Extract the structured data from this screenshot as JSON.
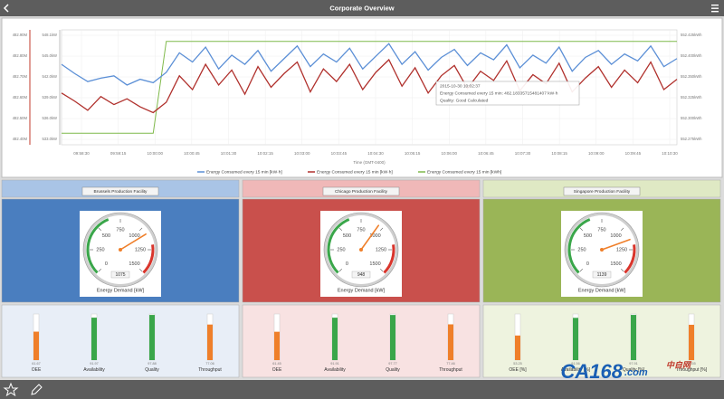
{
  "top_bar": {
    "title": "Corporate Overview"
  },
  "chart_data": {
    "type": "line",
    "x_label": "Time (GMT-0400)",
    "x_tick_labels": [
      "09:58:30",
      "09:59:15",
      "10:00:00",
      "10:00:45",
      "10:01:30",
      "10:02:15",
      "10:03:00",
      "10:03:45",
      "10:04:30",
      "10:05:15",
      "10:06:00",
      "10:06:45",
      "10:07:30",
      "10:08:15",
      "10:09:00",
      "10:09:45",
      "10:10:30"
    ],
    "left_outer_labels": [
      "482.90M",
      "482.80M",
      "482.70M",
      "482.60M",
      "482.50M",
      "482.40M"
    ],
    "left_inner_labels": [
      "548.1kW",
      "545.0kW",
      "542.0kW",
      "539.0kW",
      "536.0kW",
      "533.0kW"
    ],
    "right_labels": [
      "552.425kWh",
      "552.400kWh",
      "552.350kWh",
      "552.325kWh",
      "552.300kWh",
      "552.275kWh"
    ],
    "ylim": [
      0,
      100
    ],
    "series": [
      {
        "name": "Energy Consumed every 15 min [kW·h]",
        "color": "#5b8fd6",
        "values": [
          70,
          62,
          55,
          58,
          60,
          52,
          57,
          54,
          63,
          80,
          72,
          85,
          66,
          78,
          70,
          82,
          64,
          75,
          86,
          68,
          79,
          72,
          84,
          66,
          77,
          88,
          70,
          81,
          65,
          76,
          83,
          69,
          80,
          74,
          87,
          67,
          78,
          71,
          85,
          64,
          76,
          82,
          70,
          79,
          73,
          86,
          68,
          75
        ]
      },
      {
        "name": "Energy Consumed every 15 min [kW·h]",
        "color": "#b0302c",
        "values": [
          45,
          38,
          30,
          42,
          35,
          40,
          33,
          28,
          37,
          60,
          48,
          70,
          52,
          65,
          44,
          68,
          50,
          62,
          72,
          46,
          66,
          55,
          70,
          48,
          63,
          74,
          51,
          67,
          45,
          60,
          69,
          49,
          64,
          56,
          73,
          47,
          61,
          53,
          71,
          46,
          58,
          68,
          50,
          65,
          54,
          72,
          48,
          57
        ]
      },
      {
        "name": "Energy Consumed every 15 min [kWh]",
        "color": "#7fb94a",
        "values": [
          10,
          10,
          10,
          10,
          10,
          10,
          10,
          10,
          90,
          90,
          90,
          90,
          90,
          90,
          90,
          90,
          90,
          90,
          90,
          90,
          90,
          90,
          90,
          90,
          90,
          90,
          90,
          90,
          90,
          90,
          90,
          90,
          90,
          90,
          90,
          90,
          90,
          90,
          90,
          90,
          90,
          90,
          90,
          90,
          90,
          90,
          90,
          90
        ]
      }
    ],
    "tooltip": [
      "2015-10-30 10:02:37",
      "Energy Consumed every 15 min: 482.18335715481407 kW·h",
      "Quality: Good Calculated"
    ]
  },
  "facilities": [
    {
      "name": "Brussels Production Facility",
      "gauge": {
        "value": 1075,
        "label": "Energy Demand [kW]",
        "range": [
          0,
          1500
        ],
        "ticks": [
          0,
          250,
          500,
          750,
          1000,
          1250,
          1500
        ]
      },
      "kpis": [
        {
          "label": "OEE",
          "value": 61.67,
          "color": "#ef7f2a"
        },
        {
          "label": "Availability",
          "value": 91.97,
          "color": "#3aa64a"
        },
        {
          "label": "Quality",
          "value": 97.88,
          "color": "#3aa64a"
        },
        {
          "label": "Throughput",
          "value": 77.06,
          "color": "#ef7f2a"
        }
      ]
    },
    {
      "name": "Chicago Production Facility",
      "gauge": {
        "value": 948,
        "label": "Energy Demand [kW]",
        "range": [
          0,
          1500
        ],
        "ticks": [
          0,
          250,
          500,
          750,
          1000,
          1250,
          1500
        ]
      },
      "kpis": [
        {
          "label": "OEE",
          "value": 61.45,
          "color": "#ef7f2a"
        },
        {
          "label": "Availability",
          "value": 91.91,
          "color": "#3aa64a"
        },
        {
          "label": "Quality",
          "value": 97.77,
          "color": "#3aa64a"
        },
        {
          "label": "Throughput",
          "value": 77.46,
          "color": "#ef7f2a"
        }
      ]
    },
    {
      "name": "Singapore Production Facility",
      "gauge": {
        "value": 1139,
        "label": "Energy Demand [kW]",
        "range": [
          0,
          1500
        ],
        "ticks": [
          0,
          250,
          500,
          750,
          1000,
          1250,
          1500
        ]
      },
      "kpis": [
        {
          "label": "OEE [%]",
          "value": 53.25,
          "color": "#ef7f2a"
        },
        {
          "label": "Availability [%]",
          "value": 91.56,
          "color": "#3aa64a"
        },
        {
          "label": "Quality [%]",
          "value": 97.91,
          "color": "#3aa64a"
        },
        {
          "label": "Throughput [%]",
          "value": 76.55,
          "color": "#ef7f2a"
        }
      ]
    }
  ],
  "watermark": {
    "brand": "CA168",
    "domain": ".com",
    "cn": "中自网"
  }
}
